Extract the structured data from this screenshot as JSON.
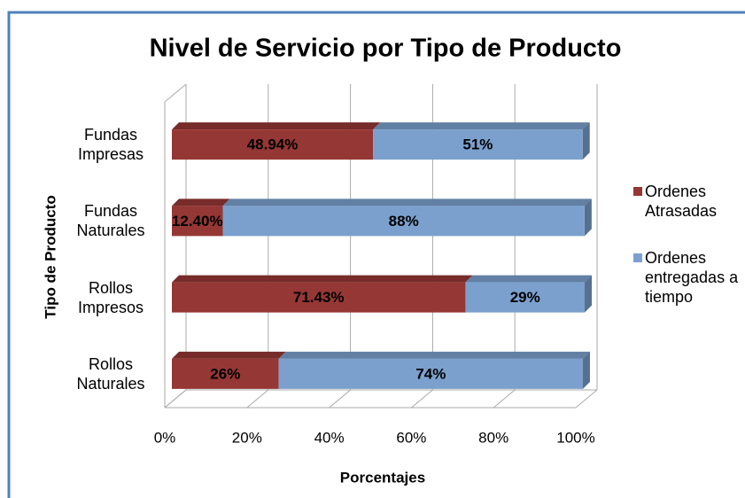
{
  "chart_data": {
    "type": "bar",
    "orientation": "horizontal",
    "stacked": true,
    "title": "Nivel de Servicio por Tipo de Producto",
    "x_label": "Porcentajes",
    "y_label": "Tipo de Producto",
    "categories": [
      "Fundas Impresas",
      "Fundas Naturales",
      "Rollos Impresos",
      "Rollos Naturales"
    ],
    "series": [
      {
        "name": "Ordenes Atrasadas",
        "color": "#953735",
        "values": [
          48.94,
          12.4,
          71.43,
          26
        ],
        "value_labels": [
          "48.94%",
          "12.40%",
          "71.43%",
          "26%"
        ]
      },
      {
        "name": "Ordenes entregadas a tiempo",
        "color": "#7ba0cd",
        "values": [
          51,
          88,
          29,
          74
        ],
        "value_labels": [
          "51%",
          "88%",
          "29%",
          "74%"
        ]
      }
    ],
    "xlim": [
      0,
      100
    ],
    "xticks": [
      {
        "value": 0,
        "label": "0%"
      },
      {
        "value": 20,
        "label": "20%"
      },
      {
        "value": 40,
        "label": "40%"
      },
      {
        "value": 60,
        "label": "60%"
      },
      {
        "value": 80,
        "label": "80%"
      },
      {
        "value": 100,
        "label": "100%"
      }
    ],
    "grid": true,
    "legend": "right"
  }
}
